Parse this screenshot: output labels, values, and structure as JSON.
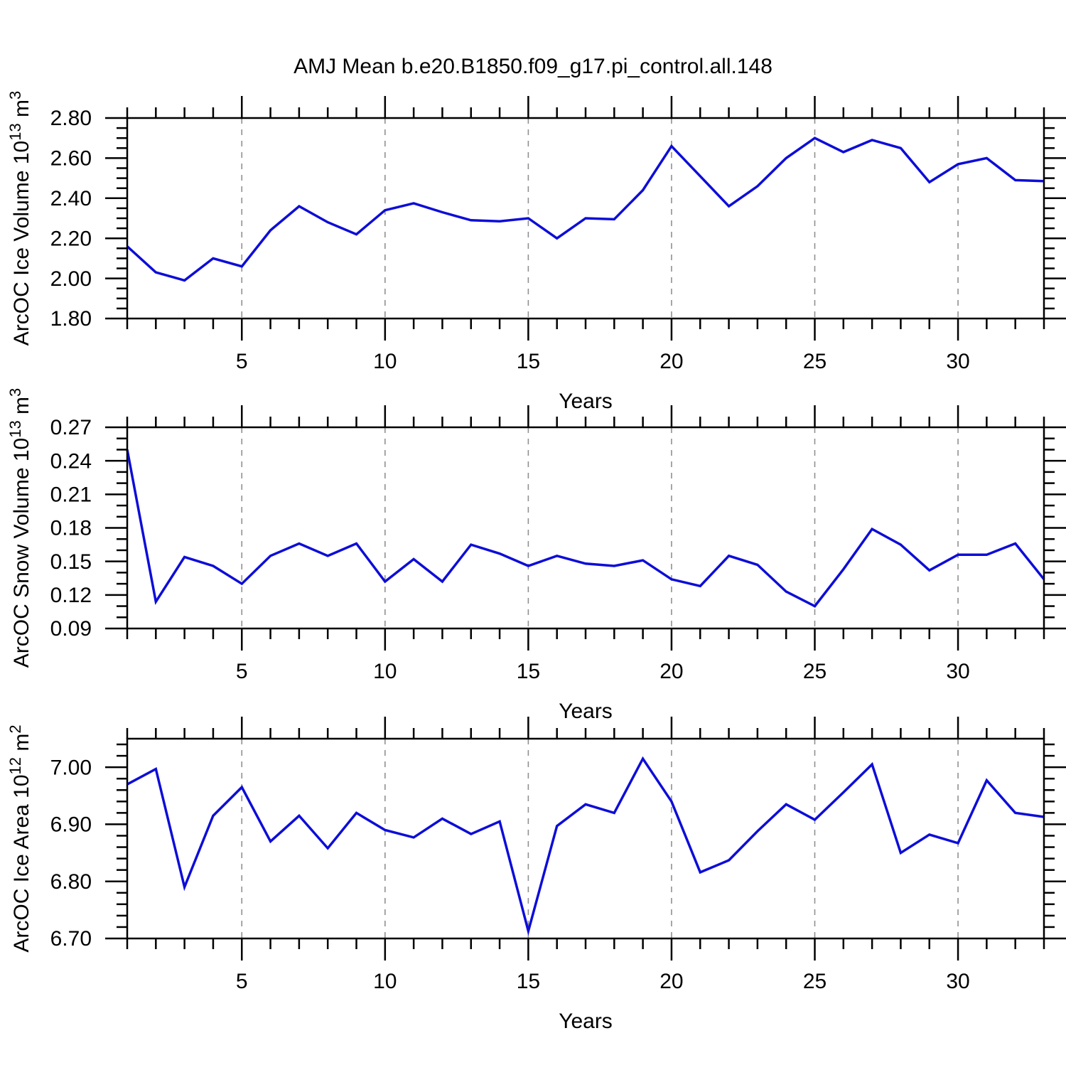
{
  "page": {
    "title": "AMJ Mean b.e20.B1850.f09_g17.pi_control.all.148"
  },
  "colors": {
    "line": "#0d0dd8",
    "grid": "#909090",
    "axis": "#000000",
    "text": "#000000",
    "background": "#ffffff"
  },
  "x_axis": {
    "label": "Years",
    "range": [
      1,
      33
    ],
    "major_ticks": [
      5,
      10,
      15,
      20,
      25,
      30
    ],
    "major_tick_labels": [
      "5",
      "10",
      "15",
      "20",
      "25",
      "30"
    ],
    "minor_step": 1,
    "years": [
      1,
      2,
      3,
      4,
      5,
      6,
      7,
      8,
      9,
      10,
      11,
      12,
      13,
      14,
      15,
      16,
      17,
      18,
      19,
      20,
      21,
      22,
      23,
      24,
      25,
      26,
      27,
      28,
      29,
      30,
      31,
      32,
      33
    ]
  },
  "chart_data": [
    {
      "type": "line",
      "name": "ice-volume",
      "ylabel_parts": [
        [
          "ArcOC Ice Volume 10",
          false
        ],
        [
          "13",
          true
        ],
        [
          " m",
          false
        ],
        [
          "3",
          true
        ]
      ],
      "xlabel": "Years",
      "ylim": [
        1.8,
        2.8
      ],
      "ytick_values": [
        1.8,
        2.0,
        2.2,
        2.4,
        2.6,
        2.8
      ],
      "ytick_labels": [
        "1.80",
        "2.00",
        "2.20",
        "2.40",
        "2.60",
        "2.80"
      ],
      "ytick_minor_step": 0.05,
      "grid": "vertical-dashed",
      "values": [
        2.16,
        2.03,
        1.99,
        2.1,
        2.06,
        2.24,
        2.36,
        2.28,
        2.22,
        2.34,
        2.375,
        2.33,
        2.29,
        2.285,
        2.3,
        2.2,
        2.3,
        2.295,
        2.44,
        2.66,
        2.51,
        2.36,
        2.46,
        2.6,
        2.7,
        2.63,
        2.69,
        2.65,
        2.48,
        2.57,
        2.6,
        2.49,
        2.485
      ]
    },
    {
      "type": "line",
      "name": "snow-volume",
      "ylabel_parts": [
        [
          "ArcOC Snow Volume 10",
          false
        ],
        [
          "13",
          true
        ],
        [
          " m",
          false
        ],
        [
          "3",
          true
        ]
      ],
      "xlabel": "Years",
      "ylim": [
        0.09,
        0.27
      ],
      "ytick_values": [
        0.09,
        0.12,
        0.15,
        0.18,
        0.21,
        0.24,
        0.27
      ],
      "ytick_labels": [
        "0.09",
        "0.12",
        "0.15",
        "0.18",
        "0.21",
        "0.24",
        "0.27"
      ],
      "ytick_minor_step": 0.01,
      "grid": "vertical-dashed",
      "values": [
        0.25,
        0.114,
        0.154,
        0.146,
        0.13,
        0.155,
        0.166,
        0.155,
        0.166,
        0.132,
        0.152,
        0.132,
        0.165,
        0.157,
        0.146,
        0.155,
        0.148,
        0.146,
        0.151,
        0.134,
        0.128,
        0.155,
        0.147,
        0.123,
        0.11,
        0.143,
        0.179,
        0.165,
        0.142,
        0.156,
        0.156,
        0.166,
        0.134
      ]
    },
    {
      "type": "line",
      "name": "ice-area",
      "ylabel_parts": [
        [
          "ArcOC Ice Area 10",
          false
        ],
        [
          "12",
          true
        ],
        [
          " m",
          false
        ],
        [
          "2",
          true
        ]
      ],
      "xlabel": "Years",
      "ylim": [
        6.7,
        7.05
      ],
      "ytick_values": [
        6.7,
        6.8,
        6.9,
        7.0
      ],
      "ytick_labels": [
        "6.70",
        "6.80",
        "6.90",
        "7.00"
      ],
      "ytick_minor_step": 0.02,
      "grid": "vertical-dashed",
      "values": [
        6.97,
        6.997,
        6.79,
        6.915,
        6.965,
        6.87,
        6.915,
        6.858,
        6.92,
        6.89,
        6.877,
        6.91,
        6.883,
        6.905,
        6.713,
        6.897,
        6.935,
        6.92,
        7.015,
        6.94,
        6.816,
        6.837,
        6.888,
        6.935,
        6.908,
        6.956,
        7.005,
        6.85,
        6.882,
        6.867,
        6.977,
        6.92,
        6.913
      ]
    }
  ]
}
